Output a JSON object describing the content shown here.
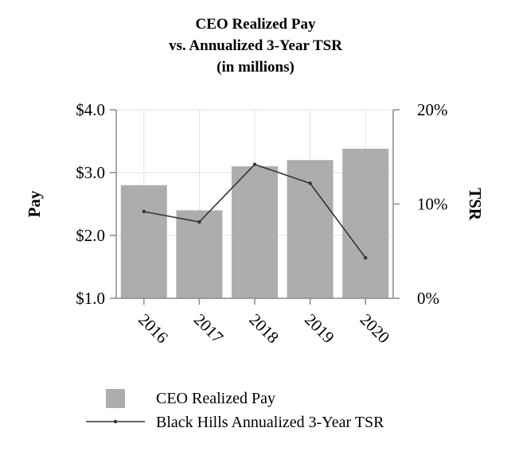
{
  "chart_data": {
    "type": "bar",
    "title_lines": [
      "CEO Realized Pay",
      "vs. Annualized 3-Year TSR",
      "(in millions)"
    ],
    "categories": [
      "2016",
      "2017",
      "2018",
      "2019",
      "2020"
    ],
    "series": [
      {
        "name": "CEO Realized Pay",
        "type": "bar",
        "axis": "left",
        "color": "#adadad",
        "values": [
          2.8,
          2.4,
          3.1,
          3.2,
          3.38
        ]
      },
      {
        "name": "Black Hills Annualized 3-Year TSR",
        "type": "line",
        "axis": "right",
        "color": "#333333",
        "values": [
          9.2,
          8.1,
          14.2,
          12.2,
          4.3
        ]
      }
    ],
    "ylabel": "Pay",
    "ylabel_right": "TSR",
    "ylim": [
      1.0,
      4.0
    ],
    "ylim_right": [
      0,
      20
    ],
    "y_ticks": [
      {
        "value": 1.0,
        "label": "$1.0"
      },
      {
        "value": 2.0,
        "label": "$2.0"
      },
      {
        "value": 3.0,
        "label": "$3.0"
      },
      {
        "value": 4.0,
        "label": "$4.0"
      }
    ],
    "y_ticks_right": [
      {
        "value": 0,
        "label": "0%"
      },
      {
        "value": 10,
        "label": "10%"
      },
      {
        "value": 20,
        "label": "20%"
      }
    ],
    "grid": true,
    "legend_position": "bottom"
  }
}
